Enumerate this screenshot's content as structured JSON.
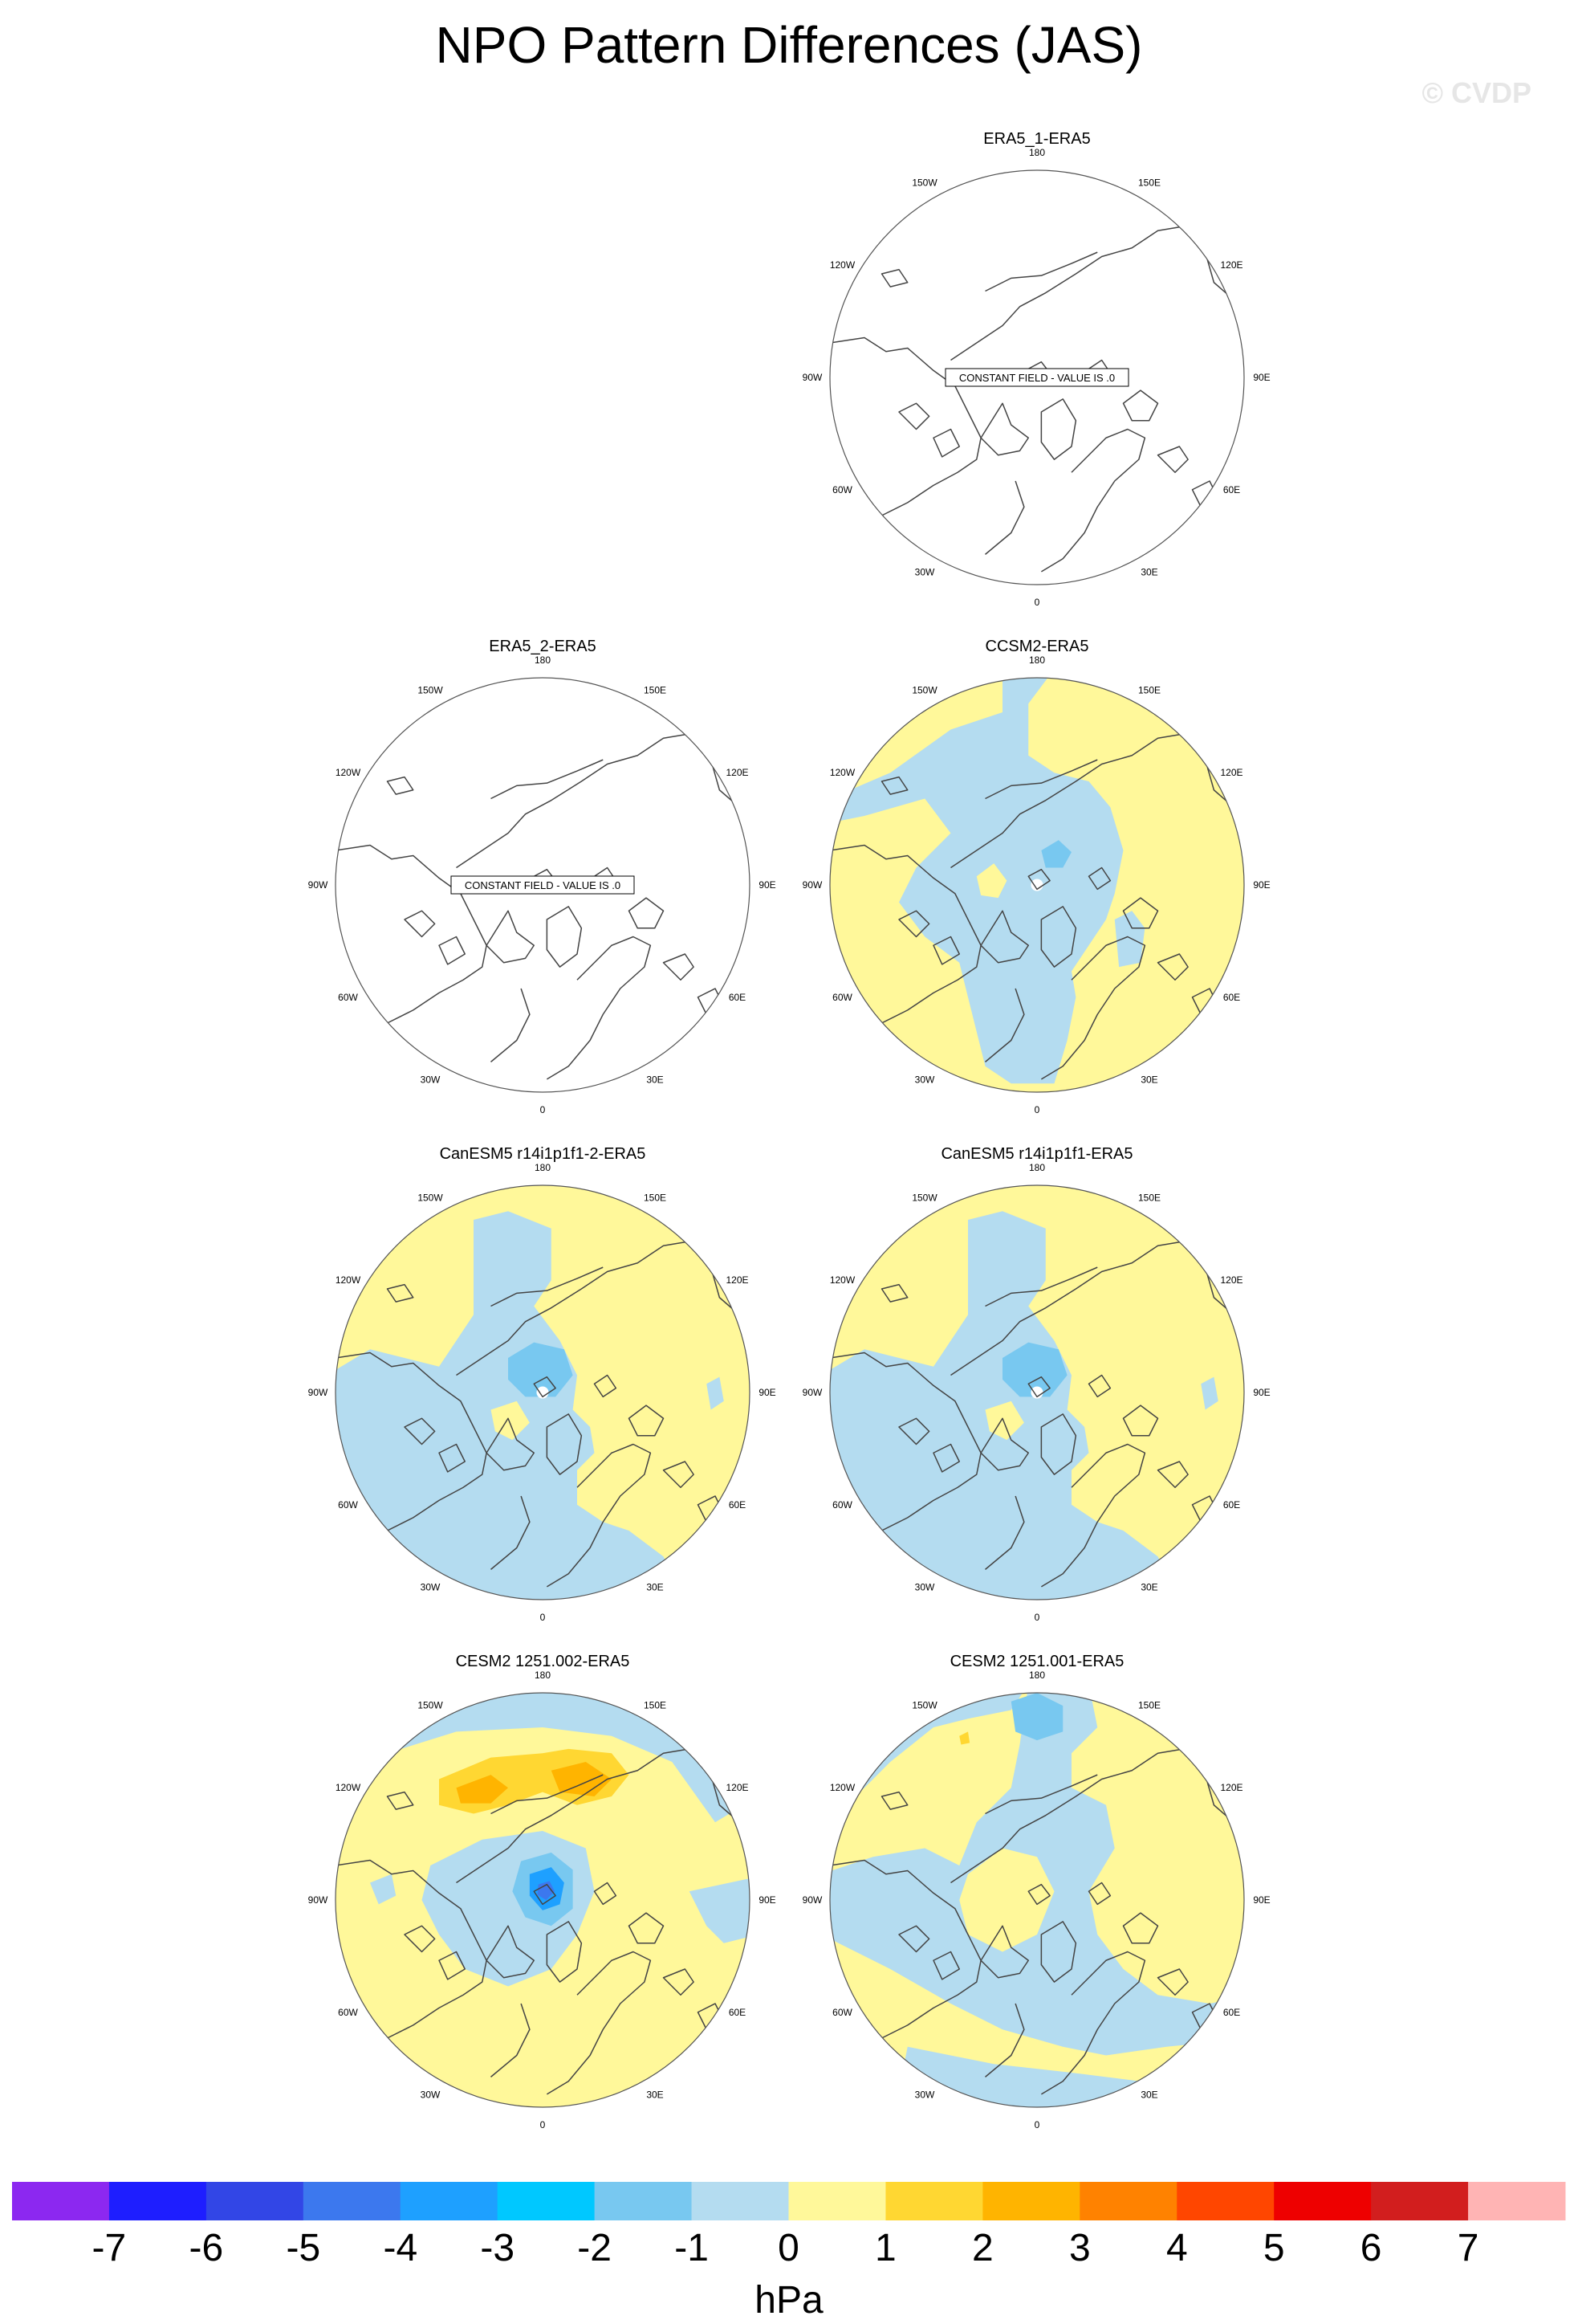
{
  "title": "NPO Pattern Differences (JAS)",
  "watermark": "© CVDP",
  "constant_field_label": "CONSTANT FIELD - VALUE IS .0",
  "lon_labels": [
    "180",
    "150E",
    "120E",
    "90E",
    "60E",
    "30E",
    "0",
    "30W",
    "60W",
    "90W",
    "120W",
    "150W"
  ],
  "panels": [
    {
      "title": "ERA5_1-ERA5",
      "pattern": "constant"
    },
    {
      "title": "ERA5_2-ERA5",
      "pattern": "constant"
    },
    {
      "title": "CCSM2-ERA5",
      "pattern": "ccsm2"
    },
    {
      "title": "CanESM5 r14i1p1f1-2-ERA5",
      "pattern": "canesm"
    },
    {
      "title": "CanESM5 r14i1p1f1-ERA5",
      "pattern": "canesm"
    },
    {
      "title": "CESM2 1251.002-ERA5",
      "pattern": "cesm2a"
    },
    {
      "title": "CESM2 1251.001-ERA5",
      "pattern": "cesm2b"
    }
  ],
  "colorbar": {
    "units": "hPa",
    "labels": [
      "-7",
      "-6",
      "-5",
      "-4",
      "-3",
      "-2",
      "-1",
      "0",
      "1",
      "2",
      "3",
      "4",
      "5",
      "6",
      "7"
    ],
    "colors": [
      "#8c28f0",
      "#1e1eff",
      "#3246e6",
      "#3c78ee",
      "#1ea0ff",
      "#00c8ff",
      "#78c8f0",
      "#b4dcf0",
      "#fff89a",
      "#ffd732",
      "#ffb400",
      "#ff8200",
      "#ff4600",
      "#ee0000",
      "#d21e1e",
      "#ffb4b4"
    ]
  }
}
